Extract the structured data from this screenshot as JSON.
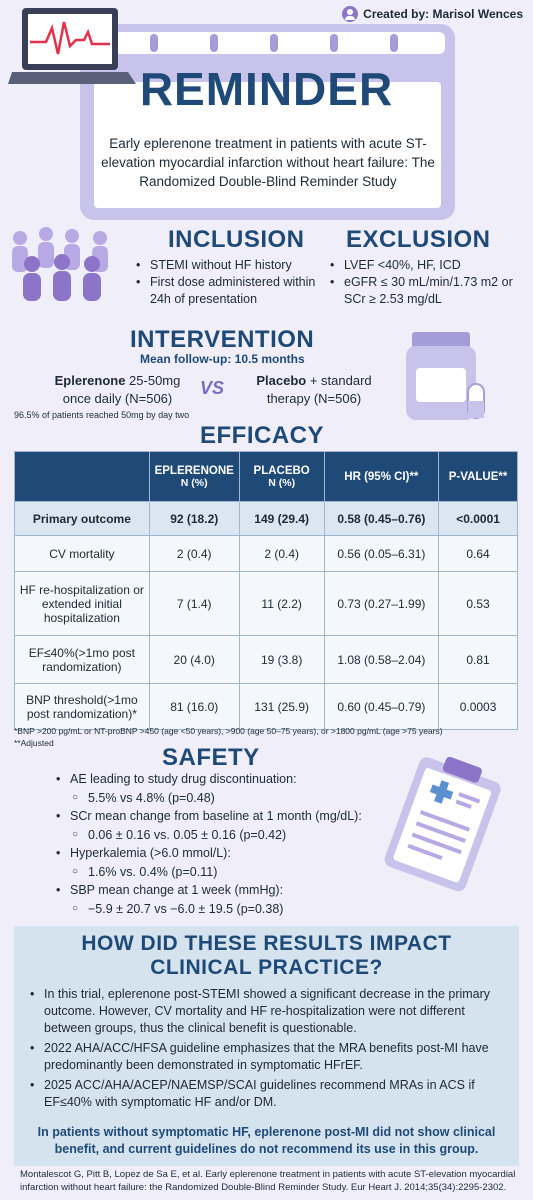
{
  "credit": "Created by: Marisol Wences",
  "title": "REMINDER",
  "subtitle": "Early eplerenone treatment in patients with acute ST-elevation myocardial infarction without heart failure: The Randomized Double-Blind Reminder Study",
  "inclusion": {
    "heading": "INCLUSION",
    "items": [
      "STEMI without  HF history",
      "First dose administered within 24h of presentation"
    ]
  },
  "exclusion": {
    "heading": "EXCLUSION",
    "items": [
      "LVEF <40%, HF, ICD",
      "eGFR ≤ 30 mL/min/1.73 m2 or SCr ≥ 2.53 mg/dL"
    ]
  },
  "intervention": {
    "heading": "INTERVENTION",
    "followup": "Mean follow-up: 10.5 months",
    "drug_a_name": "Eplerenone",
    "drug_a_dose": " 25-50mg",
    "drug_a_line2": "once daily (N=506)",
    "drug_a_note": "96.5% of patients reached 50mg by day two",
    "vs": "VS",
    "drug_b_name": "Placebo",
    "drug_b_rest": " + standard therapy (N=506)"
  },
  "efficacy": {
    "heading": "EFFICACY",
    "columns": [
      {
        "label": "",
        "sub": ""
      },
      {
        "label": "EPLERENONE",
        "sub": "N (%)"
      },
      {
        "label": "PLACEBO",
        "sub": "N (%)"
      },
      {
        "label": "HR (95% CI)**",
        "sub": ""
      },
      {
        "label": "P-VALUE**",
        "sub": ""
      }
    ],
    "rows": [
      [
        "Primary outcome",
        "92 (18.2)",
        "149 (29.4)",
        "0.58 (0.45–0.76)",
        "<0.0001"
      ],
      [
        "CV mortality",
        "2 (0.4)",
        "2 (0.4)",
        "0.56 (0.05–6.31)",
        "0.64"
      ],
      [
        "HF re-hospitalization or extended initial hospitalization",
        "7 (1.4)",
        "11 (2.2)",
        "0.73 (0.27–1.99)",
        "0.53"
      ],
      [
        "EF≤40%(>1mo post randomization)",
        "20 (4.0)",
        "19 (3.8)",
        "1.08 (0.58–2.04)",
        "0.81"
      ],
      [
        "BNP threshold(>1mo post randomization)*",
        "81 (16.0)",
        "131 (25.9)",
        "0.60 (0.45–0.79)",
        "0.0003"
      ]
    ],
    "footnote1": "*BNP >200 pg/mL or NT-proBNP >450 (age <50 years), >900 (age 50–75 years), or >1800 pg/mL (age >75 years)",
    "footnote2": "**Adjusted"
  },
  "safety": {
    "heading": "SAFETY",
    "items": [
      {
        "text": "AE leading to study drug discontinuation:",
        "sub": "5.5% vs 4.8% (p=0.48)"
      },
      {
        "text": "SCr mean change from baseline at 1 month (mg/dL):",
        "sub": "0.06 ± 0.16 vs. 0.05 ± 0.16 (p=0.42)"
      },
      {
        "text": "Hyperkalemia (>6.0 mmol/L):",
        "sub": "1.6% vs. 0.4% (p=0.11)"
      },
      {
        "text": "SBP mean change at 1 week (mmHg):",
        "sub": "−5.9 ± 20.7 vs −6.0 ± 19.5 (p=0.38)"
      }
    ]
  },
  "impact": {
    "heading1": "HOW DID THESE RESULTS IMPACT",
    "heading2": "CLINICAL PRACTICE?",
    "items": [
      "In this trial, eplerenone post-STEMI showed a significant decrease in the primary outcome. However, CV mortality and HF re-hospitalization were not different between groups, thus the clinical benefit is questionable.",
      "2022 AHA/ACC/HFSA guideline emphasizes that the MRA benefits post-MI have predominantly been demonstrated in symptomatic HFrEF.",
      "2025 ACC/AHA/ACEP/NAEMSP/SCAI guidelines recommend MRAs in ACS if EF≤40% with symptomatic HF and/or DM."
    ],
    "conclusion": "In patients without symptomatic HF, eplerenone post-MI did not show clinical benefit, and current guidelines do not recommend its use in this group."
  },
  "reference": "Montalescot G, Pitt B, Lopez de Sa E, et al. Early eplerenone treatment in patients with acute ST-elevation myocardial infarction without heart failure: the Randomized Double-Blind Reminder Study. Eur Heart J. 2014;35(34):2295-2302.",
  "colors": {
    "navy": "#1f4a78",
    "lavender": "#c8c3ea",
    "bg": "#f0eff9",
    "light_blue": "#d5e3ef"
  },
  "icons": [
    "user-avatar-icon",
    "laptop-ecg-icon",
    "people-crowd-icon",
    "pill-bottle-icon",
    "clipboard-medical-icon"
  ]
}
